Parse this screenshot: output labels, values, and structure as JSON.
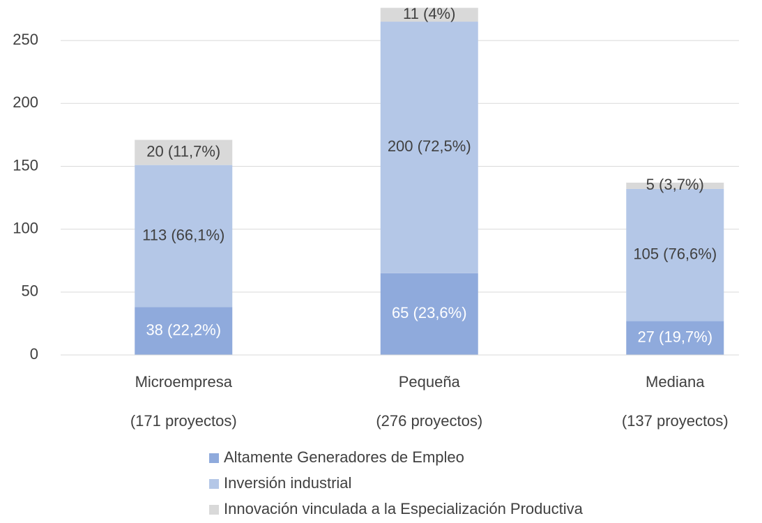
{
  "chart_data": {
    "type": "stacked_bar",
    "categories": [
      [
        "Microempresa",
        "(171 proyectos)"
      ],
      [
        "Pequeña",
        "(276 proyectos)"
      ],
      [
        "Mediana",
        "(137 proyectos)"
      ]
    ],
    "series": [
      {
        "name": "Altamente Generadores de Empleo",
        "color": "#8faadc",
        "label_color": "#ffffff",
        "values": [
          38,
          65,
          27
        ],
        "value_labels": [
          "38 (22,2%)",
          "65 (23,6%)",
          "27 (19,7%)"
        ]
      },
      {
        "name": "Inversión industrial",
        "color": "#b4c7e7",
        "label_color": "#404040",
        "values": [
          113,
          200,
          105
        ],
        "value_labels": [
          "113 (66,1%)",
          "200 (72,5%)",
          "105 (76,6%)"
        ]
      },
      {
        "name": "Innovación vinculada a la Especialización Productiva",
        "color": "#d9d9d9",
        "label_color": "#404040",
        "values": [
          20,
          11,
          5
        ],
        "value_labels": [
          "20 (11,7%)",
          "11 (4%)",
          "5 (3,7%)"
        ]
      }
    ],
    "ylim": [
      0,
      280
    ],
    "yticks": [
      0,
      50,
      100,
      150,
      200,
      250
    ],
    "grid": true,
    "legend": "bottom"
  }
}
